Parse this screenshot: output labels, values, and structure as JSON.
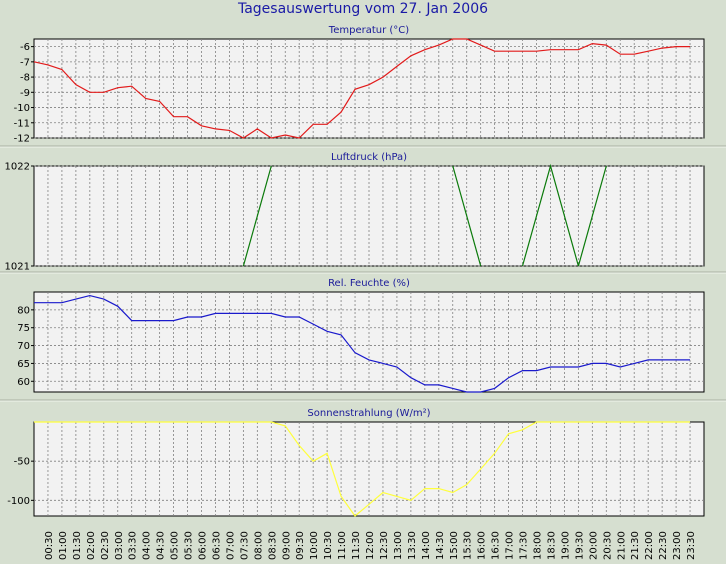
{
  "page": {
    "title": "Tagesauswertung vom 27. Jan 2006"
  },
  "x_labels": [
    "00:30",
    "01:00",
    "01:30",
    "02:00",
    "02:30",
    "03:00",
    "03:30",
    "04:00",
    "04:30",
    "05:00",
    "05:30",
    "06:00",
    "06:30",
    "07:00",
    "07:30",
    "08:00",
    "08:30",
    "09:00",
    "09:30",
    "10:00",
    "10:30",
    "11:00",
    "11:30",
    "12:00",
    "12:30",
    "13:00",
    "13:30",
    "14:00",
    "14:30",
    "15:00",
    "15:30",
    "16:00",
    "16:30",
    "17:00",
    "17:30",
    "18:00",
    "18:30",
    "19:00",
    "19:30",
    "20:00",
    "20:30",
    "21:00",
    "21:30",
    "22:00",
    "22:30",
    "23:00",
    "23:30"
  ],
  "colors": {
    "background": "#d6dfd0",
    "plot_background": "#f2f2f2",
    "grid": "#808080",
    "title": "#1a1aa6"
  },
  "chart_data": [
    {
      "type": "line",
      "title": "Temperatur (°C)",
      "color": "#e21b1b",
      "ylim": [
        -12,
        -5.5
      ],
      "yticks": [
        "-6",
        "-7",
        "-8",
        "-9",
        "-10",
        "-11",
        "-12"
      ],
      "ytick_values": [
        -6,
        -7,
        -8,
        -9,
        -10,
        -11,
        -12
      ],
      "x": [
        0,
        0.5,
        1,
        1.5,
        2,
        2.5,
        3,
        3.5,
        4,
        4.5,
        5,
        5.5,
        6,
        6.5,
        7,
        7.5,
        8,
        8.5,
        9,
        9.5,
        10,
        10.5,
        11,
        11.5,
        12,
        12.5,
        13,
        13.5,
        14,
        14.5,
        15,
        15.5,
        16,
        16.5,
        17,
        17.5,
        18,
        18.5,
        19,
        19.5,
        20,
        20.5,
        21,
        21.5,
        22,
        22.5,
        23,
        23.5
      ],
      "values": [
        -7,
        -7.2,
        -7.5,
        -8.5,
        -9,
        -9,
        -8.7,
        -8.6,
        -9.4,
        -9.6,
        -10.6,
        -10.6,
        -11.2,
        -11.4,
        -11.5,
        -12,
        -11.4,
        -12,
        -11.8,
        -12,
        -11.1,
        -11.1,
        -10.3,
        -8.8,
        -8.5,
        -8,
        -7.3,
        -6.6,
        -6.2,
        -5.9,
        -5.5,
        -5.4,
        -5.9,
        -6.3,
        -6.3,
        -6.3,
        -6.3,
        -6.2,
        -6.2,
        -6.2,
        -5.8,
        -5.9,
        -6.5,
        -6.5,
        -6.3,
        -6.1,
        -6,
        -6
      ]
    },
    {
      "type": "line",
      "title": "Luftdruck (hPa)",
      "color": "#0a7a0a",
      "ylim": [
        1021,
        1022
      ],
      "yticks": [
        "1022",
        "1021"
      ],
      "ytick_values": [
        1022,
        1021
      ],
      "segments": [
        {
          "x": [
            7.5,
            8.5
          ],
          "values": [
            1021,
            1022
          ]
        },
        {
          "x": [
            15,
            16
          ],
          "values": [
            1022,
            1021
          ]
        },
        {
          "x": [
            17.5,
            18.5,
            19.5
          ],
          "values": [
            1021,
            1022,
            1021
          ]
        },
        {
          "x": [
            19.5,
            20.5
          ],
          "values": [
            1021,
            1022
          ]
        }
      ]
    },
    {
      "type": "line",
      "title": "Rel. Feuchte (%)",
      "color": "#1a1acc",
      "ylim": [
        57,
        85
      ],
      "yticks": [
        "80",
        "75",
        "70",
        "65",
        "60"
      ],
      "ytick_values": [
        80,
        75,
        70,
        65,
        60
      ],
      "x": [
        0,
        0.5,
        1,
        1.5,
        2,
        2.5,
        3,
        3.5,
        4,
        4.5,
        5,
        5.5,
        6,
        6.5,
        7,
        7.5,
        8,
        8.5,
        9,
        9.5,
        10,
        10.5,
        11,
        11.5,
        12,
        12.5,
        13,
        13.5,
        14,
        14.5,
        15,
        15.5,
        16,
        16.5,
        17,
        17.5,
        18,
        18.5,
        19,
        19.5,
        20,
        20.5,
        21,
        21.5,
        22,
        22.5,
        23,
        23.5
      ],
      "values": [
        82,
        82,
        82,
        83,
        84,
        83,
        81,
        77,
        77,
        77,
        77,
        78,
        78,
        79,
        79,
        79,
        79,
        79,
        78,
        78,
        76,
        74,
        73,
        68,
        66,
        65,
        64,
        61,
        59,
        59,
        58,
        57,
        57,
        58,
        61,
        63,
        63,
        64,
        64,
        64,
        65,
        65,
        64,
        65,
        66,
        66,
        66,
        66
      ]
    },
    {
      "type": "line",
      "title": "Sonnenstrahlung (W/m²)",
      "color": "#ffff3c",
      "ylim": [
        -120,
        0
      ],
      "yticks": [
        "-50",
        "-100"
      ],
      "ytick_values": [
        -50,
        -100
      ],
      "x": [
        0,
        0.5,
        1,
        1.5,
        2,
        2.5,
        3,
        3.5,
        4,
        4.5,
        5,
        5.5,
        6,
        6.5,
        7,
        7.5,
        8,
        8.5,
        9,
        9.5,
        10,
        10.5,
        11,
        11.5,
        12,
        12.5,
        13,
        13.5,
        14,
        14.5,
        15,
        15.5,
        16,
        16.5,
        17,
        17.5,
        18,
        18.5,
        19,
        19.5,
        20,
        20.5,
        21,
        21.5,
        22,
        22.5,
        23,
        23.5
      ],
      "values": [
        0,
        0,
        0,
        0,
        0,
        0,
        0,
        0,
        0,
        0,
        0,
        0,
        0,
        0,
        0,
        0,
        0,
        0,
        -5,
        -30,
        -50,
        -40,
        -95,
        -120,
        -105,
        -90,
        -95,
        -100,
        -85,
        -85,
        -90,
        -80,
        -60,
        -40,
        -15,
        -10,
        0,
        0,
        0,
        0,
        0,
        0,
        0,
        0,
        0,
        0,
        0,
        0
      ]
    }
  ]
}
